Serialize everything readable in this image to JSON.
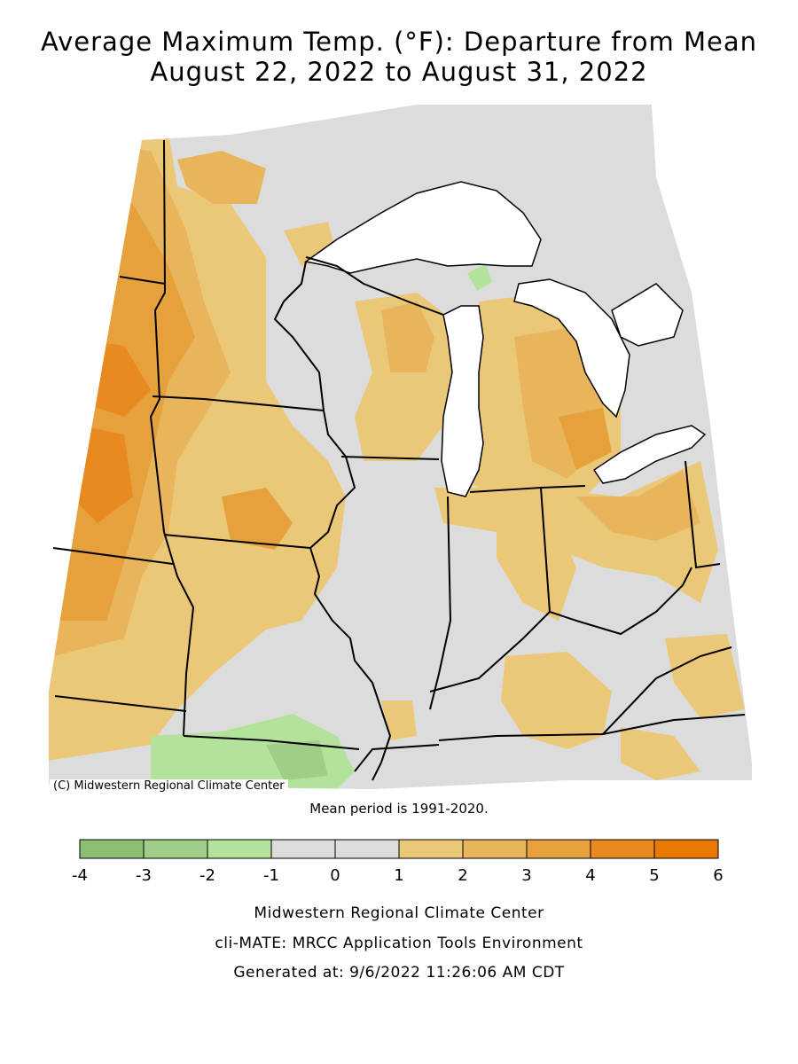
{
  "title_line1": "Average Maximum Temp. (°F): Departure from Mean",
  "title_line2": "August 22, 2022 to August 31, 2022",
  "map_copyright": "(C) Midwestern Regional Climate Center",
  "mean_period": "Mean period is 1991-2020.",
  "legend": {
    "bins": [
      {
        "from": -4,
        "to": -3,
        "color": "#8cbf73"
      },
      {
        "from": -3,
        "to": -2,
        "color": "#9fcf86"
      },
      {
        "from": -2,
        "to": -1,
        "color": "#b3e39b"
      },
      {
        "from": -1,
        "to": 0,
        "color": "#dcdcdc"
      },
      {
        "from": 0,
        "to": 1,
        "color": "#dcdcdc"
      },
      {
        "from": 1,
        "to": 2,
        "color": "#ebc878"
      },
      {
        "from": 2,
        "to": 3,
        "color": "#e8b45c"
      },
      {
        "from": 3,
        "to": 4,
        "color": "#e6a03c"
      },
      {
        "from": 4,
        "to": 5,
        "color": "#e88a20"
      },
      {
        "from": 5,
        "to": 6,
        "color": "#e87800"
      }
    ],
    "tick_labels": [
      "-4",
      "-3",
      "-2",
      "-1",
      "0",
      "1",
      "2",
      "3",
      "4",
      "5",
      "6"
    ]
  },
  "credits": {
    "line1": "Midwestern Regional Climate Center",
    "line2": "cli-MATE: MRCC Application Tools Environment",
    "line3": "Generated at: 9/6/2022 11:26:06 AM CDT"
  }
}
